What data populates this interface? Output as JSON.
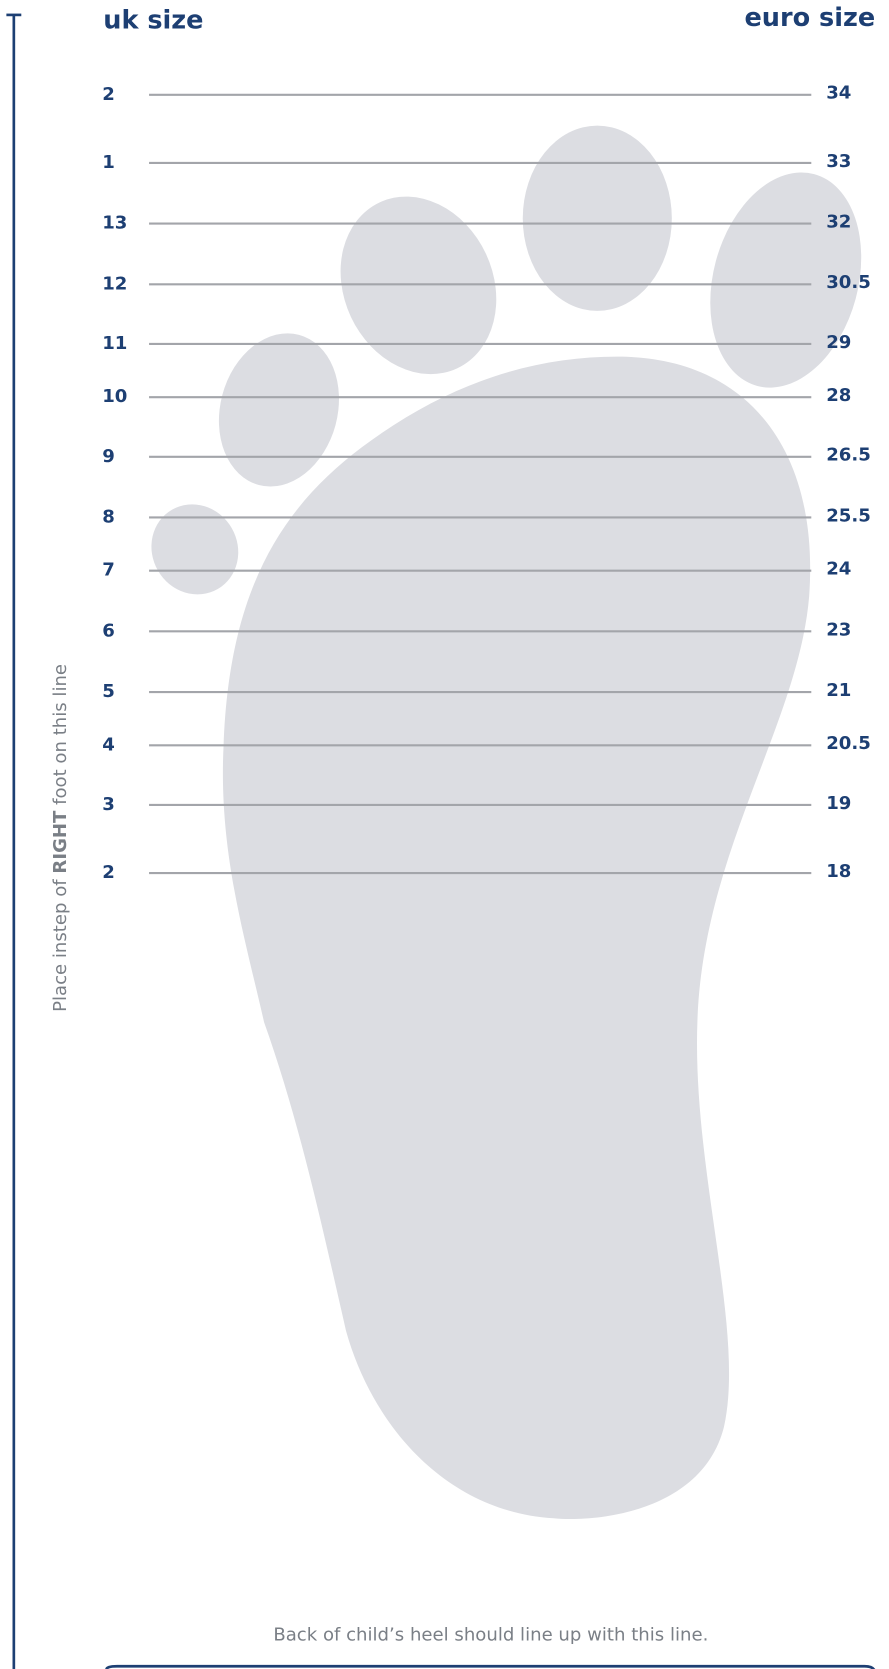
{
  "header": {
    "left": "uk size",
    "right": "euro size"
  },
  "rows": [
    [
      "2",
      "34"
    ],
    [
      "1",
      "33"
    ],
    [
      "13",
      "32"
    ],
    [
      "12",
      "30.5"
    ],
    [
      "11",
      "29"
    ],
    [
      "10",
      "28"
    ],
    [
      "9",
      "26.5"
    ],
    [
      "8",
      "25.5"
    ],
    [
      "7",
      "24"
    ],
    [
      "6",
      "23"
    ],
    [
      "5",
      "21"
    ],
    [
      "4",
      "20.5"
    ],
    [
      "3",
      "19"
    ],
    [
      "2",
      "18"
    ]
  ],
  "side_note": {
    "prefix": "Place instep of ",
    "emphasis": "RIGHT",
    "suffix": " foot on this line"
  },
  "footer": "Back of child’s heel should line up with this line."
}
